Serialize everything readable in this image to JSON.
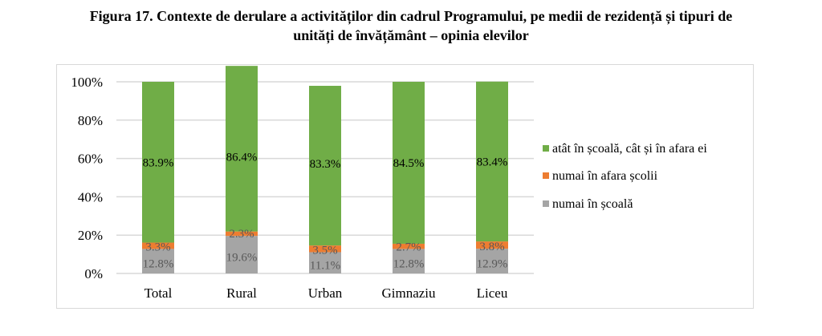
{
  "title": {
    "line1": "Figura 17. Contexte de derulare a activităților din cadrul Programului, pe medii de rezidență și tipuri de",
    "line2": "unități de învățământ – opinia elevilor"
  },
  "chart_data": {
    "type": "bar",
    "stacked": "percent",
    "title": "Figura 17. Contexte de derulare a activităților din cadrul Programului, pe medii de rezidență și tipuri de unități de învățământ – opinia elevilor",
    "xlabel": "",
    "ylabel": "",
    "ylim": [
      0,
      100
    ],
    "yticks": [
      "0%",
      "20%",
      "40%",
      "60%",
      "80%",
      "100%"
    ],
    "grid": true,
    "legend_position": "right",
    "categories": [
      "Total",
      "Rural",
      "Urban",
      "Gimnaziu",
      "Liceu"
    ],
    "series": [
      {
        "name": "numai în școală",
        "color": "#a5a5a5",
        "label_color": "#595959",
        "values": [
          12.8,
          19.6,
          11.1,
          12.8,
          12.9
        ],
        "labels": [
          "12.8%",
          "19.6%",
          "11.1%",
          "12.8%",
          "12.9%"
        ]
      },
      {
        "name": "numai în afara școlii",
        "color": "#ed7d31",
        "label_color": "#595959",
        "values": [
          3.3,
          2.3,
          3.5,
          2.7,
          3.8
        ],
        "labels": [
          "3.3%",
          "2.3%",
          "3.5%",
          "2.7%",
          "3.8%"
        ]
      },
      {
        "name": "atât în școală, cât și în afara ei",
        "color": "#70ad47",
        "label_color": "#000000",
        "values": [
          83.9,
          86.4,
          83.3,
          84.5,
          83.4
        ],
        "labels": [
          "83.9%",
          "86.4%",
          "83.3%",
          "84.5%",
          "83.4%"
        ]
      }
    ],
    "legend_order": [
      "atât în școală, cât și în afara ei",
      "numai în afara școlii",
      "numai în școală"
    ]
  }
}
